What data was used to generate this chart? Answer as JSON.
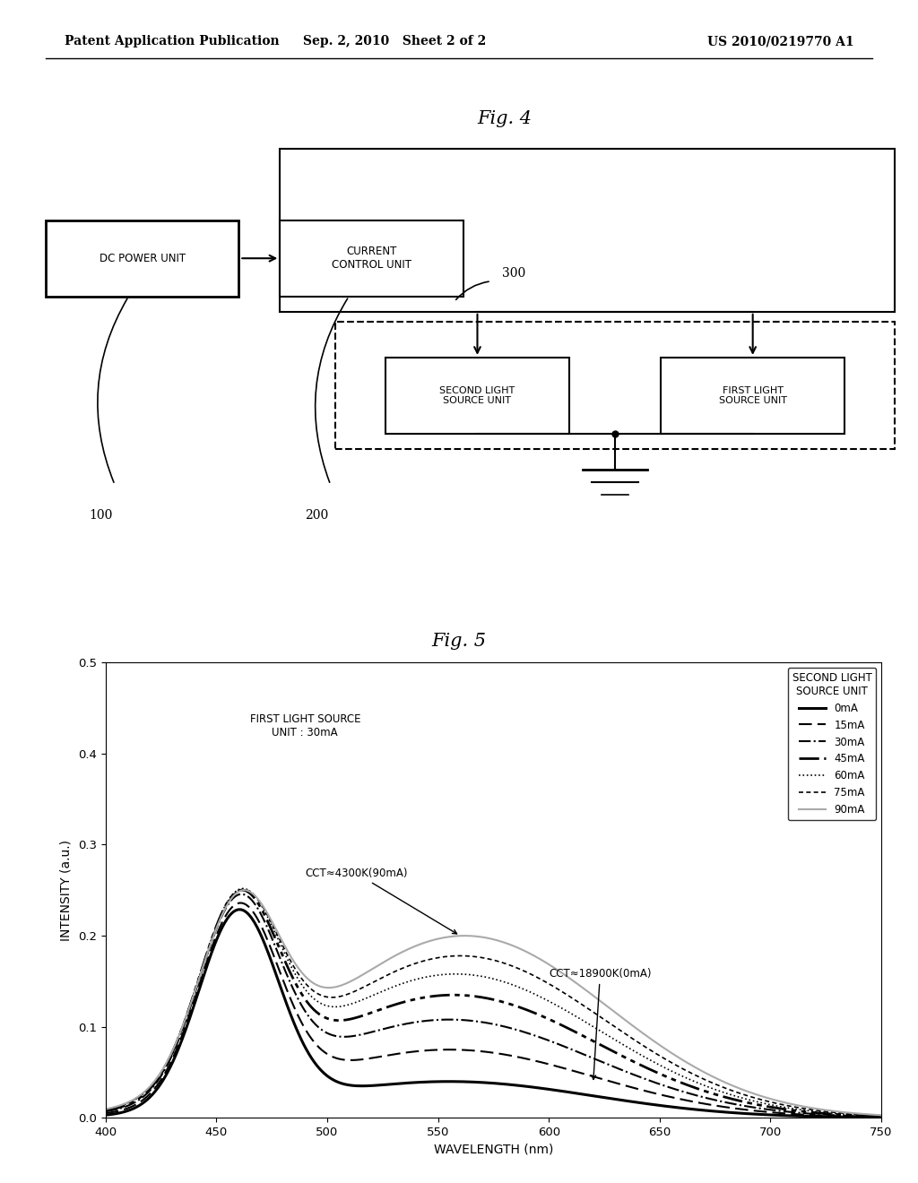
{
  "header_left": "Patent Application Publication",
  "header_mid": "Sep. 2, 2010   Sheet 2 of 2",
  "header_right": "US 2010/0219770 A1",
  "fig4_title": "Fig. 4",
  "fig5_title": "Fig. 5",
  "block_labels": {
    "dc_power": "DC POWER UNIT",
    "current_ctrl": "CURRENT\nCONTROL UNIT",
    "second_light": "SECOND LIGHT\nSOURCE UNIT",
    "first_light": "FIRST LIGHT\nSOURCE UNIT"
  },
  "ref_100": "100",
  "ref_200": "200",
  "ref_300": "300",
  "graph_xlabel": "WAVELENGTH (nm)",
  "graph_ylabel": "INTENSITY (a.u.)",
  "graph_xlim": [
    400,
    750
  ],
  "graph_ylim": [
    0,
    0.5
  ],
  "graph_xticks": [
    400,
    450,
    500,
    550,
    600,
    650,
    700,
    750
  ],
  "graph_yticks": [
    0,
    0.1,
    0.2,
    0.3,
    0.4,
    0.5
  ],
  "annotation1": "FIRST LIGHT SOURCE\nUNIT : 30mA",
  "annotation2": "CCT≈4300K(90mA)",
  "annotation3": "CCT≈18900K(0mA)",
  "legend_title": "SECOND LIGHT\nSOURCE UNIT",
  "legend_entries": [
    "0mA",
    "15mA",
    "30mA",
    "45mA",
    "60mA",
    "75mA",
    "90mA"
  ],
  "bg_color": "#ffffff"
}
